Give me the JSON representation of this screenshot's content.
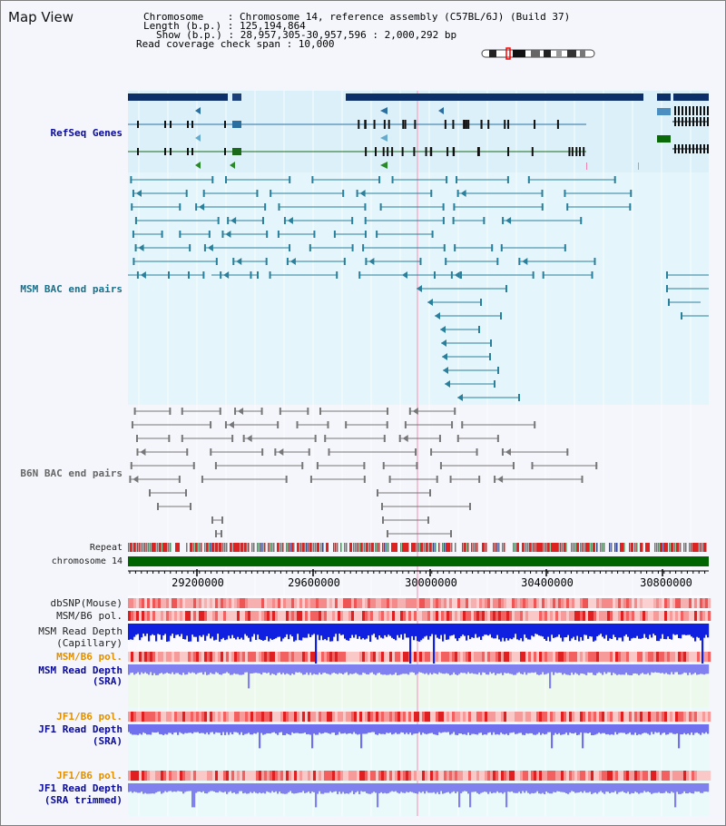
{
  "page_title": "Map View",
  "header": {
    "chromosome_line": "Chromosome    : Chromosome 14, reference assembly (C57BL/6J) (Build 37)",
    "length_line": "Length (b.p.) : 125,194,864",
    "show_line": "Show (b.p.) : 28,957,305-30,957,596 : 2,000,292 bp",
    "coverage_line": "Read coverage check span : 10,000"
  },
  "tracks": {
    "refseq": "RefSeq Genes",
    "msm_bac": "MSM BAC end pairs",
    "b6n_bac": "B6N BAC end pairs",
    "repeat": "Repeat",
    "chromosome": "chromosome 14",
    "dbsnp": "dbSNP(Mouse)",
    "msm_b6_pol1": "MSM/B6 pol.",
    "msm_read_depth_cap_1": "MSM Read Depth",
    "msm_read_depth_cap_2": "(Capillary)",
    "msm_b6_pol2": "MSM/B6 pol.",
    "msm_read_depth_sra_1": "MSM Read Depth",
    "msm_read_depth_sra_2": "(SRA)",
    "jf1_b6_pol1": "JF1/B6 pol.",
    "jf1_read_depth_sra_1": "JF1 Read Depth",
    "jf1_read_depth_sra_2": "(SRA)",
    "jf1_b6_pol2": "JF1/B6 pol.",
    "jf1_read_depth_trim_1": "JF1 Read Depth",
    "jf1_read_depth_trim_2": "(SRA trimmed)"
  },
  "axis_ticks": [
    "29200000",
    "29600000",
    "30000000",
    "30400000",
    "30800000"
  ],
  "colors": {
    "refseq_bg": "#dcf0fa",
    "msm_bg": "#e4f6fb",
    "b6n_bg": "#f4f6fb",
    "chromosome_bar": "#006400",
    "gene_dark": "#0c2f6a",
    "msm_line": "#2a7f9a",
    "b6n_line": "#777777"
  }
}
